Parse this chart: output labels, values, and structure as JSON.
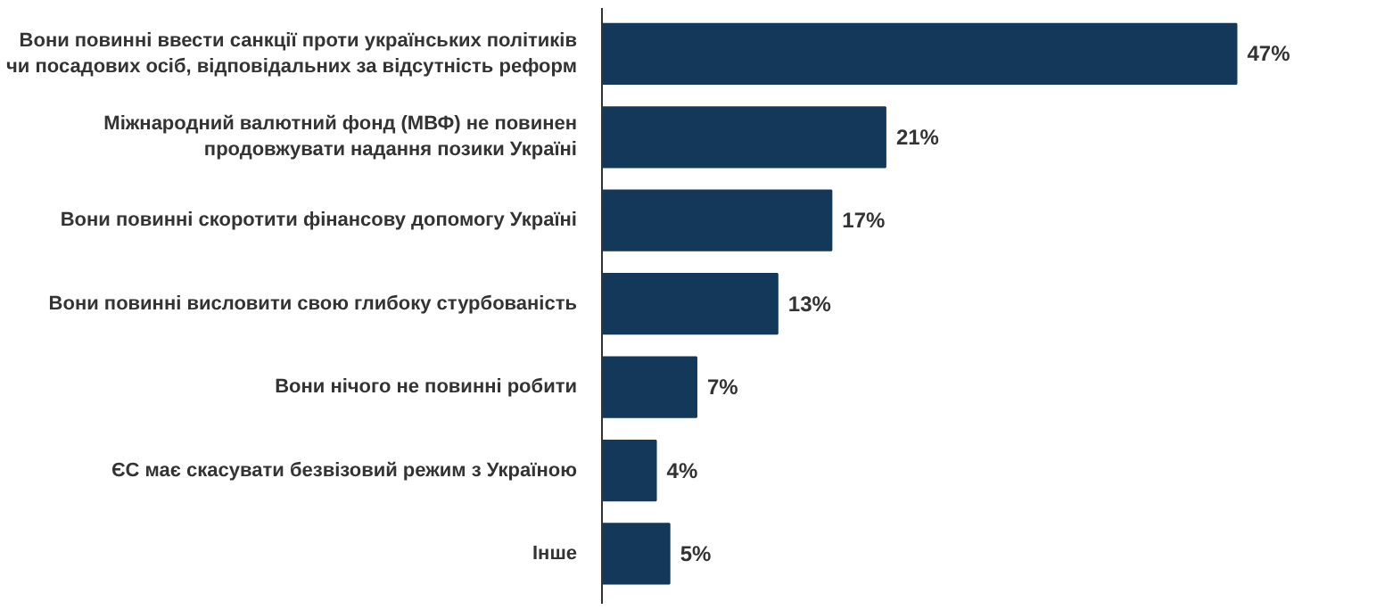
{
  "chart_data": {
    "type": "bar",
    "orientation": "horizontal",
    "categories": [
      "Вони повинні ввести санкції проти українських політиків\nчи посадових осіб, відповідальних за відсутність реформ",
      "Міжнародний валютний фонд (МВФ) не повинен\nпродовжувати надання позики Україні",
      "Вони повинні скоротити фінансову допомогу Україні",
      "Вони повинні висловити свою глибоку стурбованість",
      "Вони нічого не повинні робити",
      "ЄС має скасувати безвізовий режим з Україною",
      "Інше"
    ],
    "values": [
      47,
      21,
      17,
      13,
      7,
      4,
      5
    ],
    "value_labels": [
      "47%",
      "21%",
      "17%",
      "13%",
      "7%",
      "4%",
      "5%"
    ],
    "color": "#14385a"
  }
}
